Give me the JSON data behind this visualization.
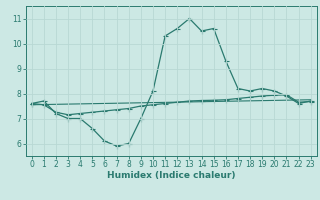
{
  "xlabel": "Humidex (Indice chaleur)",
  "bg_color": "#cce8e4",
  "line_color": "#2a7a6f",
  "grid_color": "#b8d8d4",
  "xlim": [
    -0.5,
    23.5
  ],
  "ylim": [
    5.5,
    11.5
  ],
  "xticks": [
    0,
    1,
    2,
    3,
    4,
    5,
    6,
    7,
    8,
    9,
    10,
    11,
    12,
    13,
    14,
    15,
    16,
    17,
    18,
    19,
    20,
    21,
    22,
    23
  ],
  "yticks": [
    6,
    7,
    8,
    9,
    10,
    11
  ],
  "curve1_x": [
    0,
    1,
    2,
    3,
    4,
    5,
    6,
    7,
    8,
    9,
    10,
    11,
    12,
    13,
    14,
    15,
    16,
    17,
    18,
    19,
    20,
    21,
    22,
    23
  ],
  "curve1_y": [
    7.6,
    7.7,
    7.2,
    7.0,
    7.0,
    6.6,
    6.1,
    5.9,
    6.0,
    7.0,
    8.1,
    10.3,
    10.6,
    11.0,
    10.5,
    10.6,
    9.3,
    8.2,
    8.1,
    8.2,
    8.1,
    7.9,
    7.6,
    7.7
  ],
  "curve2_x": [
    0,
    1,
    2,
    3,
    4,
    5,
    6,
    7,
    8,
    9,
    10,
    11,
    12,
    13,
    14,
    15,
    16,
    17,
    18,
    19,
    20,
    21,
    22,
    23
  ],
  "curve2_y": [
    7.6,
    7.55,
    7.25,
    7.15,
    7.2,
    7.25,
    7.3,
    7.35,
    7.4,
    7.5,
    7.55,
    7.6,
    7.65,
    7.7,
    7.72,
    7.73,
    7.75,
    7.8,
    7.85,
    7.9,
    7.93,
    7.95,
    7.65,
    7.68
  ],
  "trend_x0": 0,
  "trend_x1": 23,
  "trend_y0": 7.55,
  "trend_y1": 7.75
}
